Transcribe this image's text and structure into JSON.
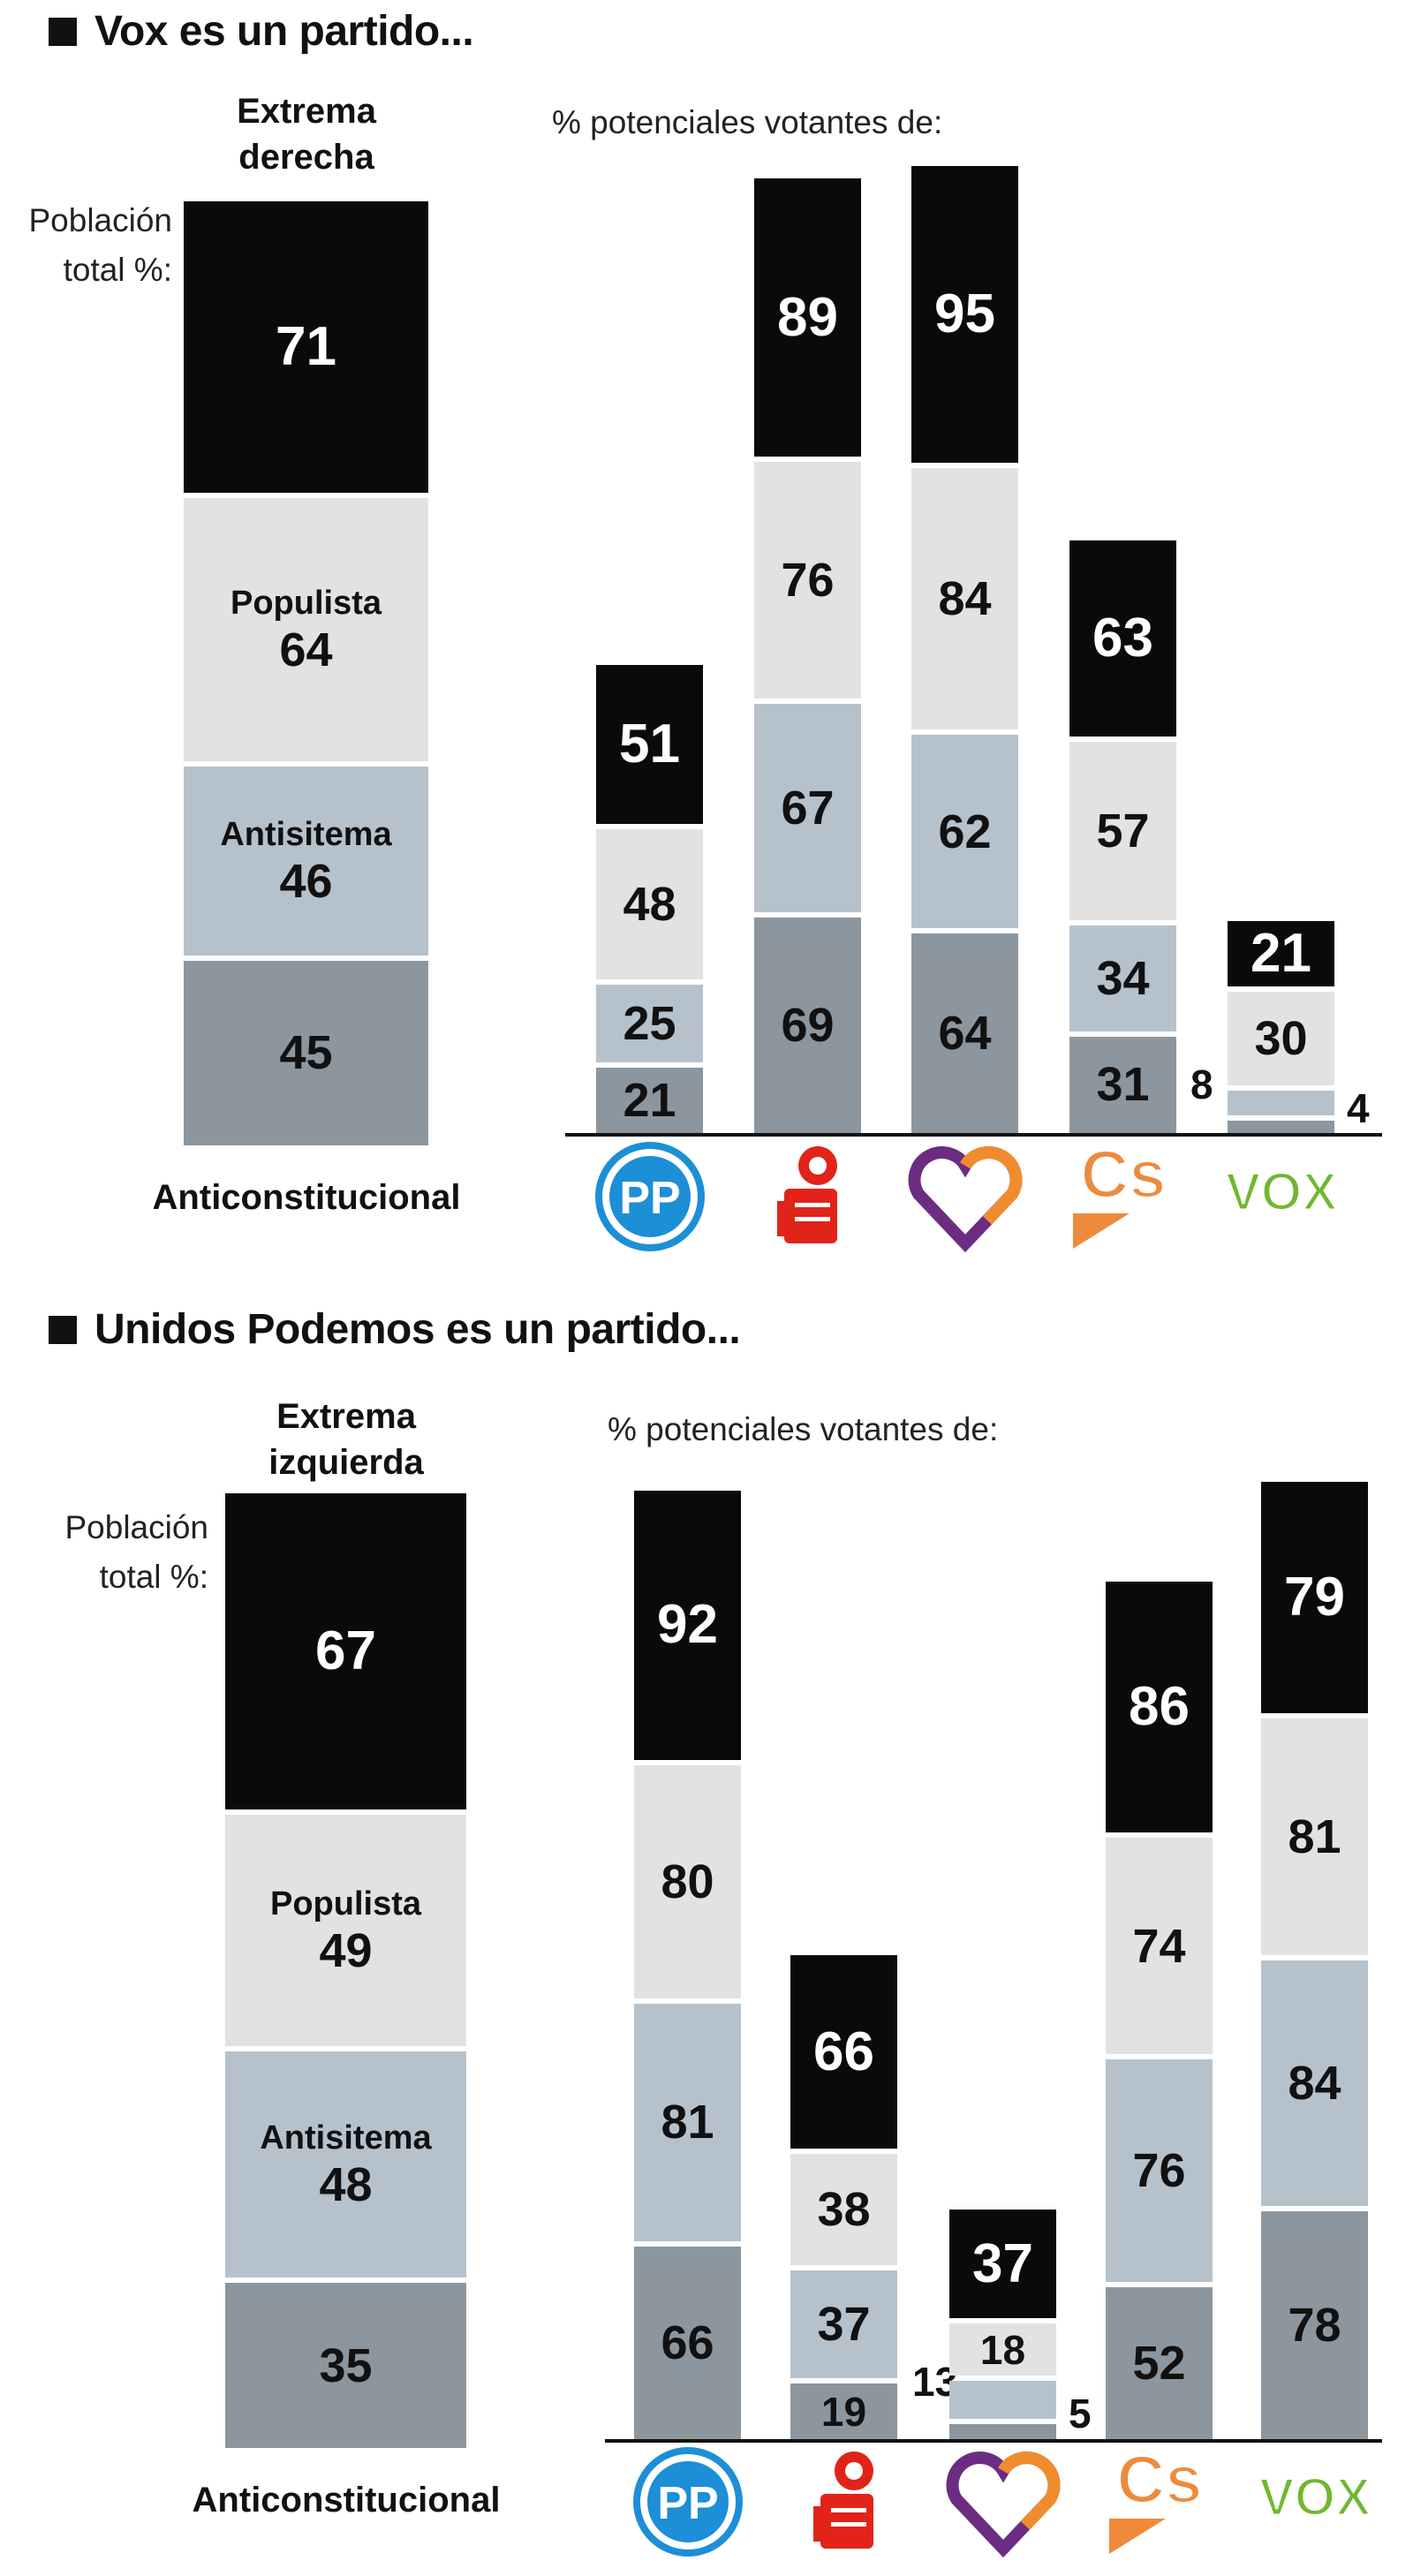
{
  "colors": {
    "extrema": "#0a0a0a",
    "populista": "#e2e2e2",
    "antisistema": "#b5c2cc",
    "anticonstitucional": "#8c969e"
  },
  "chart_data": [
    {
      "type": "bar",
      "stacked": true,
      "title": "Vox es un partido...",
      "population_header": "Extrema derecha",
      "population_label": "Población total %:",
      "parties_label": "% potenciales votantes de:",
      "bottom_label": "Anticonstitucional",
      "segment_labels": {
        "populista": "Populista",
        "antisistema": "Antisitema"
      },
      "population": {
        "extrema": 71,
        "populista": 64,
        "antisistema": 46,
        "anticonstitucional": 45
      },
      "categories": [
        "PP",
        "PSOE",
        "Podemos",
        "Cs",
        "VOX"
      ],
      "logos": [
        {
          "party": "PP",
          "text": "PP",
          "color": "#1c8fd6"
        },
        {
          "party": "PSOE",
          "text": "",
          "color": "#e2231a"
        },
        {
          "party": "Podemos",
          "text": "",
          "color": "#6b2c82"
        },
        {
          "party": "Cs",
          "text": "Cs",
          "color": "#ee8a3c"
        },
        {
          "party": "VOX",
          "text": "VOX",
          "color": "#6fb82e"
        }
      ],
      "series": [
        {
          "key": "anticonstitucional",
          "values": [
            21,
            69,
            64,
            31,
            4
          ]
        },
        {
          "key": "antisistema",
          "values": [
            25,
            67,
            62,
            34,
            8
          ]
        },
        {
          "key": "populista",
          "values": [
            48,
            76,
            84,
            57,
            30
          ]
        },
        {
          "key": "extrema",
          "values": [
            51,
            89,
            95,
            63,
            21
          ]
        }
      ]
    },
    {
      "type": "bar",
      "stacked": true,
      "title": "Unidos Podemos es un partido...",
      "population_header": "Extrema izquierda",
      "population_label": "Población total %:",
      "parties_label": "% potenciales votantes de:",
      "bottom_label": "Anticonstitucional",
      "segment_labels": {
        "populista": "Populista",
        "antisistema": "Antisitema"
      },
      "population": {
        "extrema": 67,
        "populista": 49,
        "antisistema": 48,
        "anticonstitucional": 35
      },
      "categories": [
        "PP",
        "PSOE",
        "Podemos",
        "Cs",
        "VOX"
      ],
      "logos": [
        {
          "party": "PP",
          "text": "PP",
          "color": "#1c8fd6"
        },
        {
          "party": "PSOE",
          "text": "",
          "color": "#e2231a"
        },
        {
          "party": "Podemos",
          "text": "",
          "color": "#6b2c82"
        },
        {
          "party": "Cs",
          "text": "Cs",
          "color": "#ee8a3c"
        },
        {
          "party": "VOX",
          "text": "VOX",
          "color": "#6fb82e"
        }
      ],
      "series": [
        {
          "key": "anticonstitucional",
          "values": [
            66,
            19,
            5,
            52,
            78
          ]
        },
        {
          "key": "antisistema",
          "values": [
            81,
            37,
            13,
            76,
            84
          ]
        },
        {
          "key": "populista",
          "values": [
            80,
            38,
            18,
            74,
            81
          ]
        },
        {
          "key": "extrema",
          "values": [
            92,
            66,
            37,
            86,
            79
          ]
        }
      ]
    }
  ]
}
